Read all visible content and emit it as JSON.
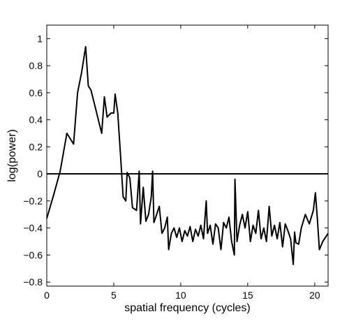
{
  "chart_data": {
    "type": "line",
    "title": "",
    "xlabel": "spatial frequency (cycles)",
    "ylabel": "log(power)",
    "xlim": [
      0,
      21
    ],
    "ylim": [
      -0.83,
      1.1
    ],
    "xticks": [
      0,
      5,
      10,
      15,
      20
    ],
    "yticks": [
      -0.8,
      -0.6,
      -0.4,
      -0.2,
      0,
      0.2,
      0.4,
      0.6,
      0.8,
      1
    ],
    "ytick_labels": [
      "−0.8",
      "−0.6",
      "−0.4",
      "−0.2",
      "0",
      "0.2",
      "0.4",
      "0.6",
      "0.8",
      "1"
    ],
    "grid": false,
    "reference_line_y": 0,
    "series": [
      {
        "color": "#000000",
        "points": [
          [
            0,
            -0.33
          ],
          [
            0.5,
            -0.16
          ],
          [
            1.0,
            0.02
          ],
          [
            1.5,
            0.3
          ],
          [
            2.0,
            0.22
          ],
          [
            2.3,
            0.6
          ],
          [
            2.6,
            0.75
          ],
          [
            2.9,
            0.94
          ],
          [
            3.1,
            0.65
          ],
          [
            3.3,
            0.62
          ],
          [
            3.6,
            0.5
          ],
          [
            3.9,
            0.38
          ],
          [
            4.1,
            0.3
          ],
          [
            4.3,
            0.57
          ],
          [
            4.5,
            0.42
          ],
          [
            4.8,
            0.45
          ],
          [
            5.0,
            0.45
          ],
          [
            5.1,
            0.59
          ],
          [
            5.3,
            0.45
          ],
          [
            5.5,
            0.15
          ],
          [
            5.7,
            -0.17
          ],
          [
            5.9,
            -0.2
          ],
          [
            6.0,
            0.01
          ],
          [
            6.2,
            -0.03
          ],
          [
            6.4,
            -0.25
          ],
          [
            6.7,
            -0.27
          ],
          [
            6.9,
            0.02
          ],
          [
            7.0,
            -0.37
          ],
          [
            7.2,
            -0.1
          ],
          [
            7.4,
            -0.35
          ],
          [
            7.6,
            -0.3
          ],
          [
            7.8,
            -0.17
          ],
          [
            7.9,
            0.02
          ],
          [
            8.0,
            -0.36
          ],
          [
            8.2,
            -0.3
          ],
          [
            8.4,
            -0.24
          ],
          [
            8.6,
            -0.44
          ],
          [
            8.8,
            -0.4
          ],
          [
            9.0,
            -0.32
          ],
          [
            9.1,
            -0.56
          ],
          [
            9.3,
            -0.44
          ],
          [
            9.5,
            -0.4
          ],
          [
            9.7,
            -0.47
          ],
          [
            9.9,
            -0.4
          ],
          [
            10.1,
            -0.5
          ],
          [
            10.3,
            -0.42
          ],
          [
            10.5,
            -0.46
          ],
          [
            10.7,
            -0.39
          ],
          [
            10.9,
            -0.5
          ],
          [
            11.1,
            -0.41
          ],
          [
            11.3,
            -0.46
          ],
          [
            11.5,
            -0.38
          ],
          [
            11.7,
            -0.48
          ],
          [
            11.9,
            -0.2
          ],
          [
            12.0,
            -0.44
          ],
          [
            12.2,
            -0.38
          ],
          [
            12.4,
            -0.52
          ],
          [
            12.6,
            -0.37
          ],
          [
            12.8,
            -0.4
          ],
          [
            13.0,
            -0.56
          ],
          [
            13.2,
            -0.36
          ],
          [
            13.4,
            -0.4
          ],
          [
            13.6,
            -0.32
          ],
          [
            13.8,
            -0.5
          ],
          [
            14.0,
            -0.6
          ],
          [
            14.05,
            -0.04
          ],
          [
            14.2,
            -0.5
          ],
          [
            14.4,
            -0.38
          ],
          [
            14.6,
            -0.3
          ],
          [
            14.8,
            -0.4
          ],
          [
            15.0,
            -0.28
          ],
          [
            15.2,
            -0.5
          ],
          [
            15.4,
            -0.38
          ],
          [
            15.6,
            -0.44
          ],
          [
            15.8,
            -0.27
          ],
          [
            16.0,
            -0.48
          ],
          [
            16.2,
            -0.4
          ],
          [
            16.4,
            -0.5
          ],
          [
            16.6,
            -0.24
          ],
          [
            16.8,
            -0.46
          ],
          [
            17.0,
            -0.38
          ],
          [
            17.2,
            -0.48
          ],
          [
            17.4,
            -0.36
          ],
          [
            17.6,
            -0.54
          ],
          [
            17.8,
            -0.37
          ],
          [
            18.0,
            -0.42
          ],
          [
            18.2,
            -0.48
          ],
          [
            18.4,
            -0.67
          ],
          [
            18.5,
            -0.43
          ],
          [
            18.6,
            -0.51
          ],
          [
            18.8,
            -0.52
          ],
          [
            19.0,
            -0.4
          ],
          [
            19.3,
            -0.3
          ],
          [
            19.6,
            -0.37
          ],
          [
            19.9,
            -0.27
          ],
          [
            20.05,
            -0.14
          ],
          [
            20.2,
            -0.33
          ],
          [
            20.35,
            -0.56
          ],
          [
            20.6,
            -0.5
          ],
          [
            21.0,
            -0.44
          ]
        ]
      }
    ]
  }
}
